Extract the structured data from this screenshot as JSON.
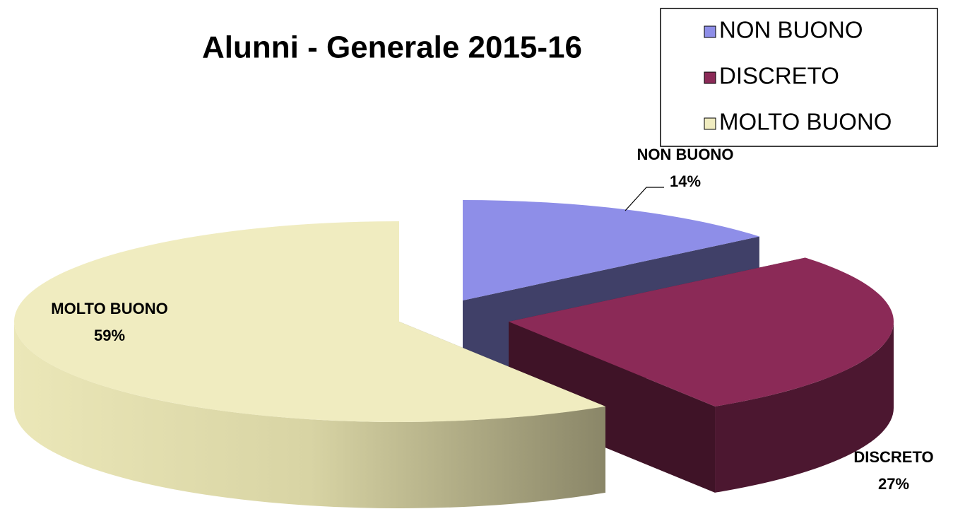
{
  "chart_data": {
    "type": "pie",
    "title": "Alunni - Generale 2015-16",
    "categories": [
      "NON BUONO",
      "DISCRETO",
      "MOLTO BUONO"
    ],
    "values": [
      14,
      27,
      59
    ],
    "value_labels": [
      "14%",
      "27%",
      "59%"
    ],
    "colors": [
      "#8e8ee8",
      "#8b2a57",
      "#f0ecc0"
    ],
    "legend": "top-right"
  }
}
